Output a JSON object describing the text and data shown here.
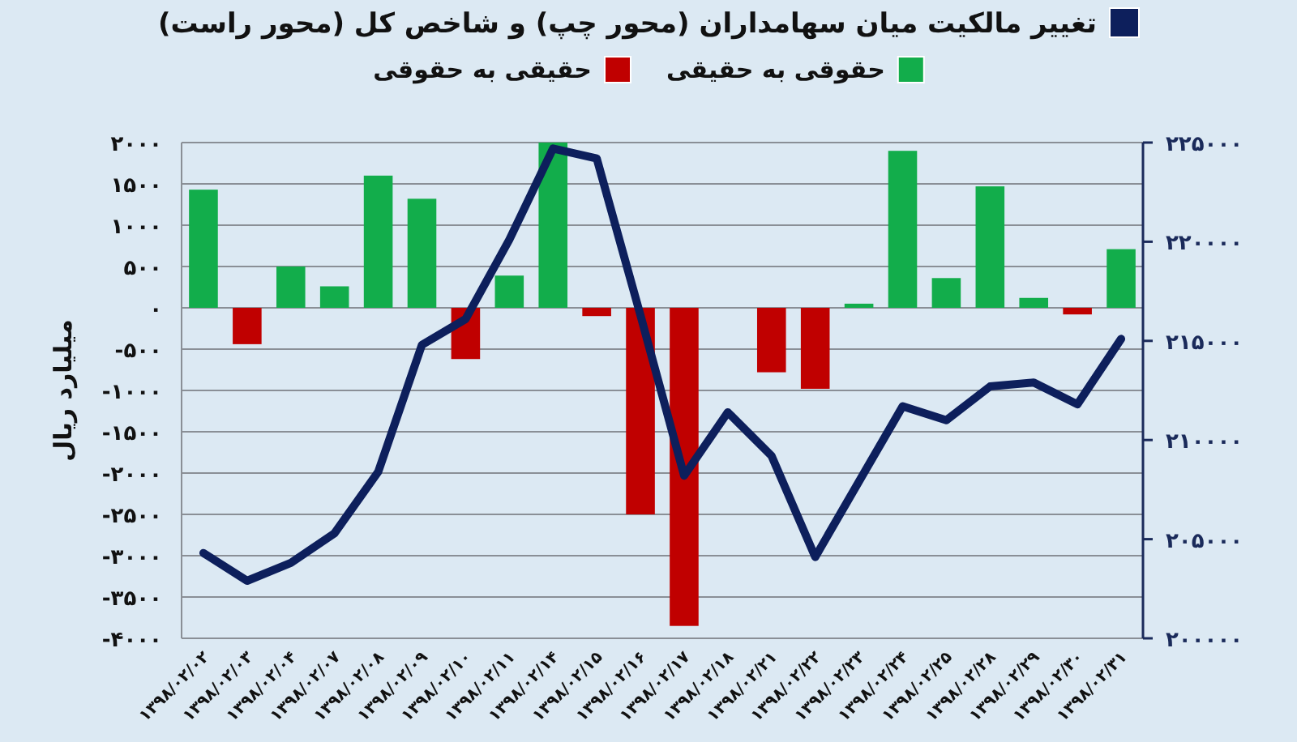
{
  "chart_data": {
    "type": "bar",
    "stacked": true,
    "ylabel": "میلیارد ریال",
    "grid": "y",
    "legend": "top",
    "categories": [
      "۱۳۹۸/۰۲/۰۲",
      "۱۳۹۸/۰۲/۰۳",
      "۱۳۹۸/۰۲/۰۴",
      "۱۳۹۸/۰۲/۰۷",
      "۱۳۹۸/۰۲/۰۸",
      "۱۳۹۸/۰۲/۰۹",
      "۱۳۹۸/۰۲/۱۰",
      "۱۳۹۸/۰۲/۱۱",
      "۱۳۹۸/۰۲/۱۴",
      "۱۳۹۸/۰۲/۱۵",
      "۱۳۹۸/۰۲/۱۶",
      "۱۳۹۸/۰۲/۱۷",
      "۱۳۹۸/۰۲/۱۸",
      "۱۳۹۸/۰۲/۲۱",
      "۱۳۹۸/۰۲/۲۲",
      "۱۳۹۸/۰۲/۲۳",
      "۱۳۹۸/۰۲/۲۴",
      "۱۳۹۸/۰۲/۲۵",
      "۱۳۹۸/۰۲/۲۸",
      "۱۳۹۸/۰۲/۲۹",
      "۱۳۹۸/۰۲/۳۰",
      "۱۳۹۸/۰۲/۳۱"
    ],
    "series": [
      {
        "name": "تغییر مالکیت میان سهامداران (محور چپ) و شاخص کل (محور راست)",
        "type": "line",
        "axis": "y2",
        "color": "#0d1f5c",
        "values": [
          204300,
          202900,
          203800,
          205300,
          208400,
          214800,
          216100,
          220100,
          224700,
          224200,
          216300,
          208200,
          211400,
          209200,
          204100,
          207900,
          211700,
          211000,
          212700,
          212900,
          211800,
          215100
        ]
      },
      {
        "name": "حقوقی به حقیقی",
        "color": "#12ad4b",
        "values": [
          1430,
          null,
          500,
          260,
          1600,
          1320,
          null,
          390,
          2000,
          null,
          null,
          null,
          null,
          null,
          null,
          50,
          1900,
          360,
          1470,
          120,
          null,
          710
        ]
      },
      {
        "name": "حقیقی به حقوقی",
        "color": "#c00000",
        "values": [
          null,
          -440,
          null,
          null,
          null,
          null,
          -620,
          null,
          null,
          -100,
          -2500,
          -3850,
          null,
          -780,
          -980,
          null,
          null,
          null,
          null,
          null,
          -80,
          null
        ]
      }
    ],
    "ylim": [
      -4000,
      2000
    ],
    "yticks": [
      {
        "value": -4000,
        "label": "-۴۰۰۰"
      },
      {
        "value": -3500,
        "label": "-۳۵۰۰"
      },
      {
        "value": -3000,
        "label": "-۳۰۰۰"
      },
      {
        "value": -2500,
        "label": "-۲۵۰۰"
      },
      {
        "value": -2000,
        "label": "-۲۰۰۰"
      },
      {
        "value": -1500,
        "label": "-۱۵۰۰"
      },
      {
        "value": -1000,
        "label": "-۱۰۰۰"
      },
      {
        "value": -500,
        "label": "-۵۰۰"
      },
      {
        "value": 0,
        "label": "۰"
      },
      {
        "value": 500,
        "label": "۵۰۰"
      },
      {
        "value": 1000,
        "label": "۱۰۰۰"
      },
      {
        "value": 1500,
        "label": "۱۵۰۰"
      },
      {
        "value": 2000,
        "label": "۲۰۰۰"
      }
    ],
    "y2lim": [
      200000,
      225000
    ],
    "y2ticks": [
      {
        "value": 200000,
        "label": "۲۰۰۰۰۰"
      },
      {
        "value": 205000,
        "label": "۲۰۵۰۰۰"
      },
      {
        "value": 210000,
        "label": "۲۱۰۰۰۰"
      },
      {
        "value": 215000,
        "label": "۲۱۵۰۰۰"
      },
      {
        "value": 220000,
        "label": "۲۲۰۰۰۰"
      },
      {
        "value": 225000,
        "label": "۲۲۵۰۰۰"
      }
    ]
  }
}
